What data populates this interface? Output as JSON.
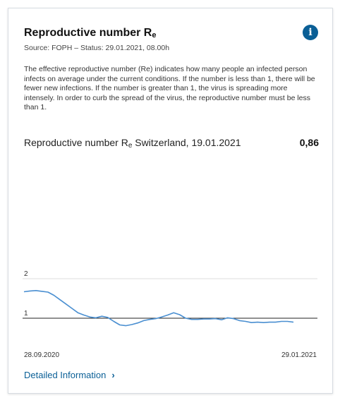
{
  "card": {
    "title_main": "Reproductive number R",
    "title_sub": "e",
    "source": "Source: FOPH – Status: 29.01.2021, 08.00h",
    "info_icon": "info-icon",
    "description": "The effective reproductive number (Re) indicates how many people an infected person infects on average under the current conditions. If the number is less than 1, there will be fewer new infections. If the number is greater than 1, the virus is spreading more intensely. In order to curb the spread of the virus, the reproductive number must be less than 1.",
    "value_label_main": "Reproductive number R",
    "value_label_sub": "e",
    "value_label_rest": " Switzerland, 19.01.2021",
    "value": "0,86",
    "detail_link": "Detailed Information",
    "detail_icon": "chevron-right-icon"
  },
  "colors": {
    "accent": "#0a5f96",
    "line": "#4a8fd1",
    "threshold": "#222222",
    "grid": "#dddddd"
  },
  "chart_data": {
    "type": "line",
    "x_start": "28.09.2020",
    "x_end": "29.01.2021",
    "yticks": [
      "2",
      "1"
    ],
    "ylim": [
      0,
      2
    ],
    "threshold": 1,
    "series": [
      {
        "values": [
          1.67,
          1.69,
          1.7,
          1.68,
          1.66,
          1.58,
          1.47,
          1.36,
          1.25,
          1.14,
          1.08,
          1.03,
          1.01,
          1.05,
          1.02,
          0.92,
          0.83,
          0.81,
          0.84,
          0.88,
          0.94,
          0.97,
          0.99,
          1.03,
          1.08,
          1.14,
          1.09,
          1.0,
          0.97,
          0.97,
          0.98,
          0.98,
          0.99,
          0.96,
          1.01,
          0.99,
          0.94,
          0.92,
          0.89,
          0.9,
          0.89,
          0.9,
          0.9,
          0.92,
          0.92,
          0.9
        ]
      }
    ]
  }
}
